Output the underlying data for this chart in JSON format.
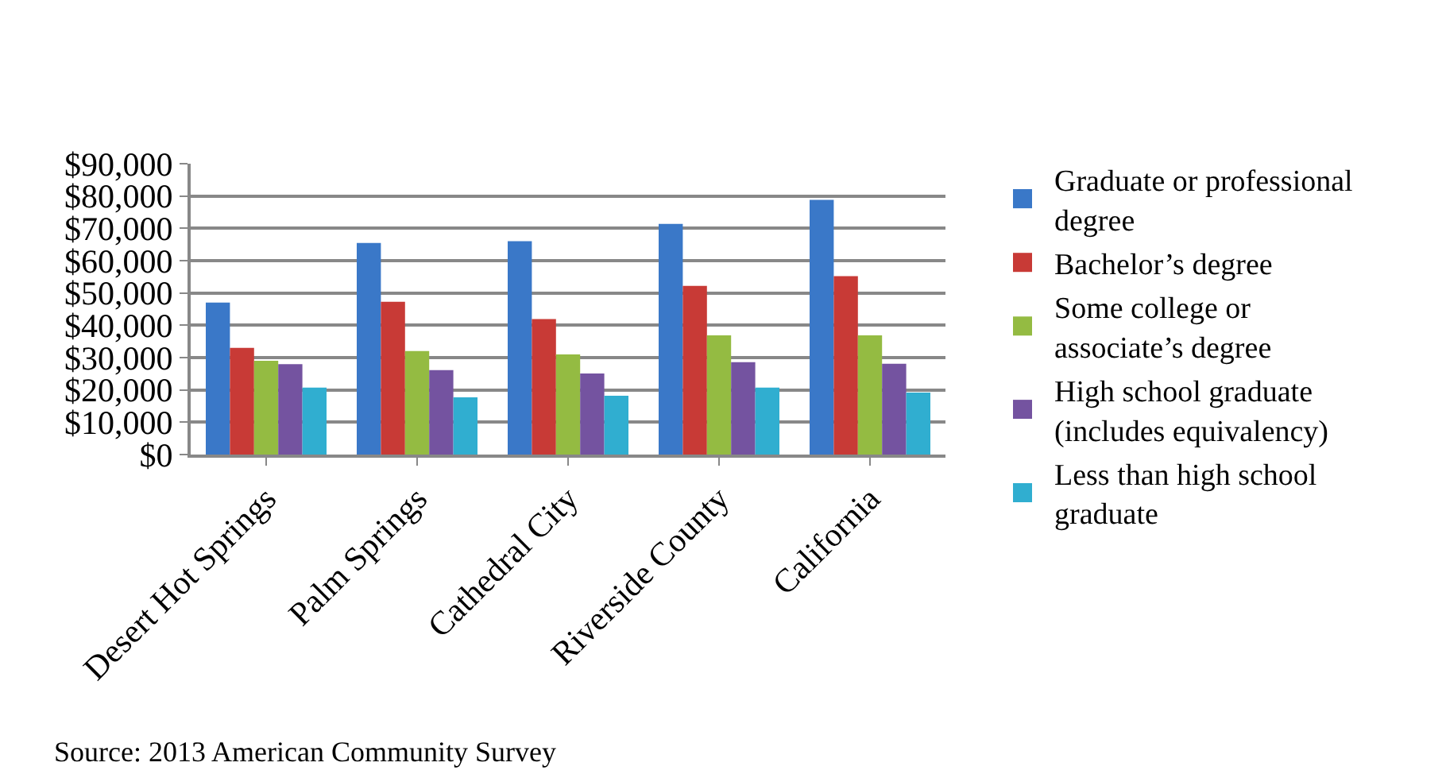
{
  "chart_data": {
    "type": "bar",
    "categories": [
      "Desert Hot Springs",
      "Palm Springs",
      "Cathedral City",
      "Riverside County",
      "California"
    ],
    "series": [
      {
        "name": "Graduate or professional degree",
        "color": "#3a78c8",
        "values": [
          47000,
          65500,
          66000,
          71400,
          78800
        ]
      },
      {
        "name": "Bachelor’s degree",
        "color": "#c83a36",
        "values": [
          33000,
          47300,
          41900,
          52200,
          55200
        ]
      },
      {
        "name": "Some college or associate’s degree",
        "color": "#94bb42",
        "values": [
          29000,
          32000,
          31000,
          36900,
          36900
        ]
      },
      {
        "name": "High school graduate (includes equivalency)",
        "color": "#7453a0",
        "values": [
          28000,
          26100,
          25100,
          28600,
          28100
        ]
      },
      {
        "name": "Less than high school graduate",
        "color": "#30aed0",
        "values": [
          20700,
          17700,
          18200,
          20700,
          19200
        ]
      }
    ],
    "ylim": [
      0,
      90000
    ],
    "yticks": [
      {
        "value": 0,
        "label": "$0"
      },
      {
        "value": 10000,
        "label": "$10,000"
      },
      {
        "value": 20000,
        "label": "$20,000"
      },
      {
        "value": 30000,
        "label": "$30,000"
      },
      {
        "value": 40000,
        "label": "$40,000"
      },
      {
        "value": 50000,
        "label": "$50,000"
      },
      {
        "value": 60000,
        "label": "$60,000"
      },
      {
        "value": 70000,
        "label": "$70,000"
      },
      {
        "value": 80000,
        "label": "$80,000"
      },
      {
        "value": 90000,
        "label": "$90,000"
      }
    ],
    "grid": "y",
    "legend": "right",
    "annotations": [
      "Source: 2013 American Community Survey"
    ]
  }
}
